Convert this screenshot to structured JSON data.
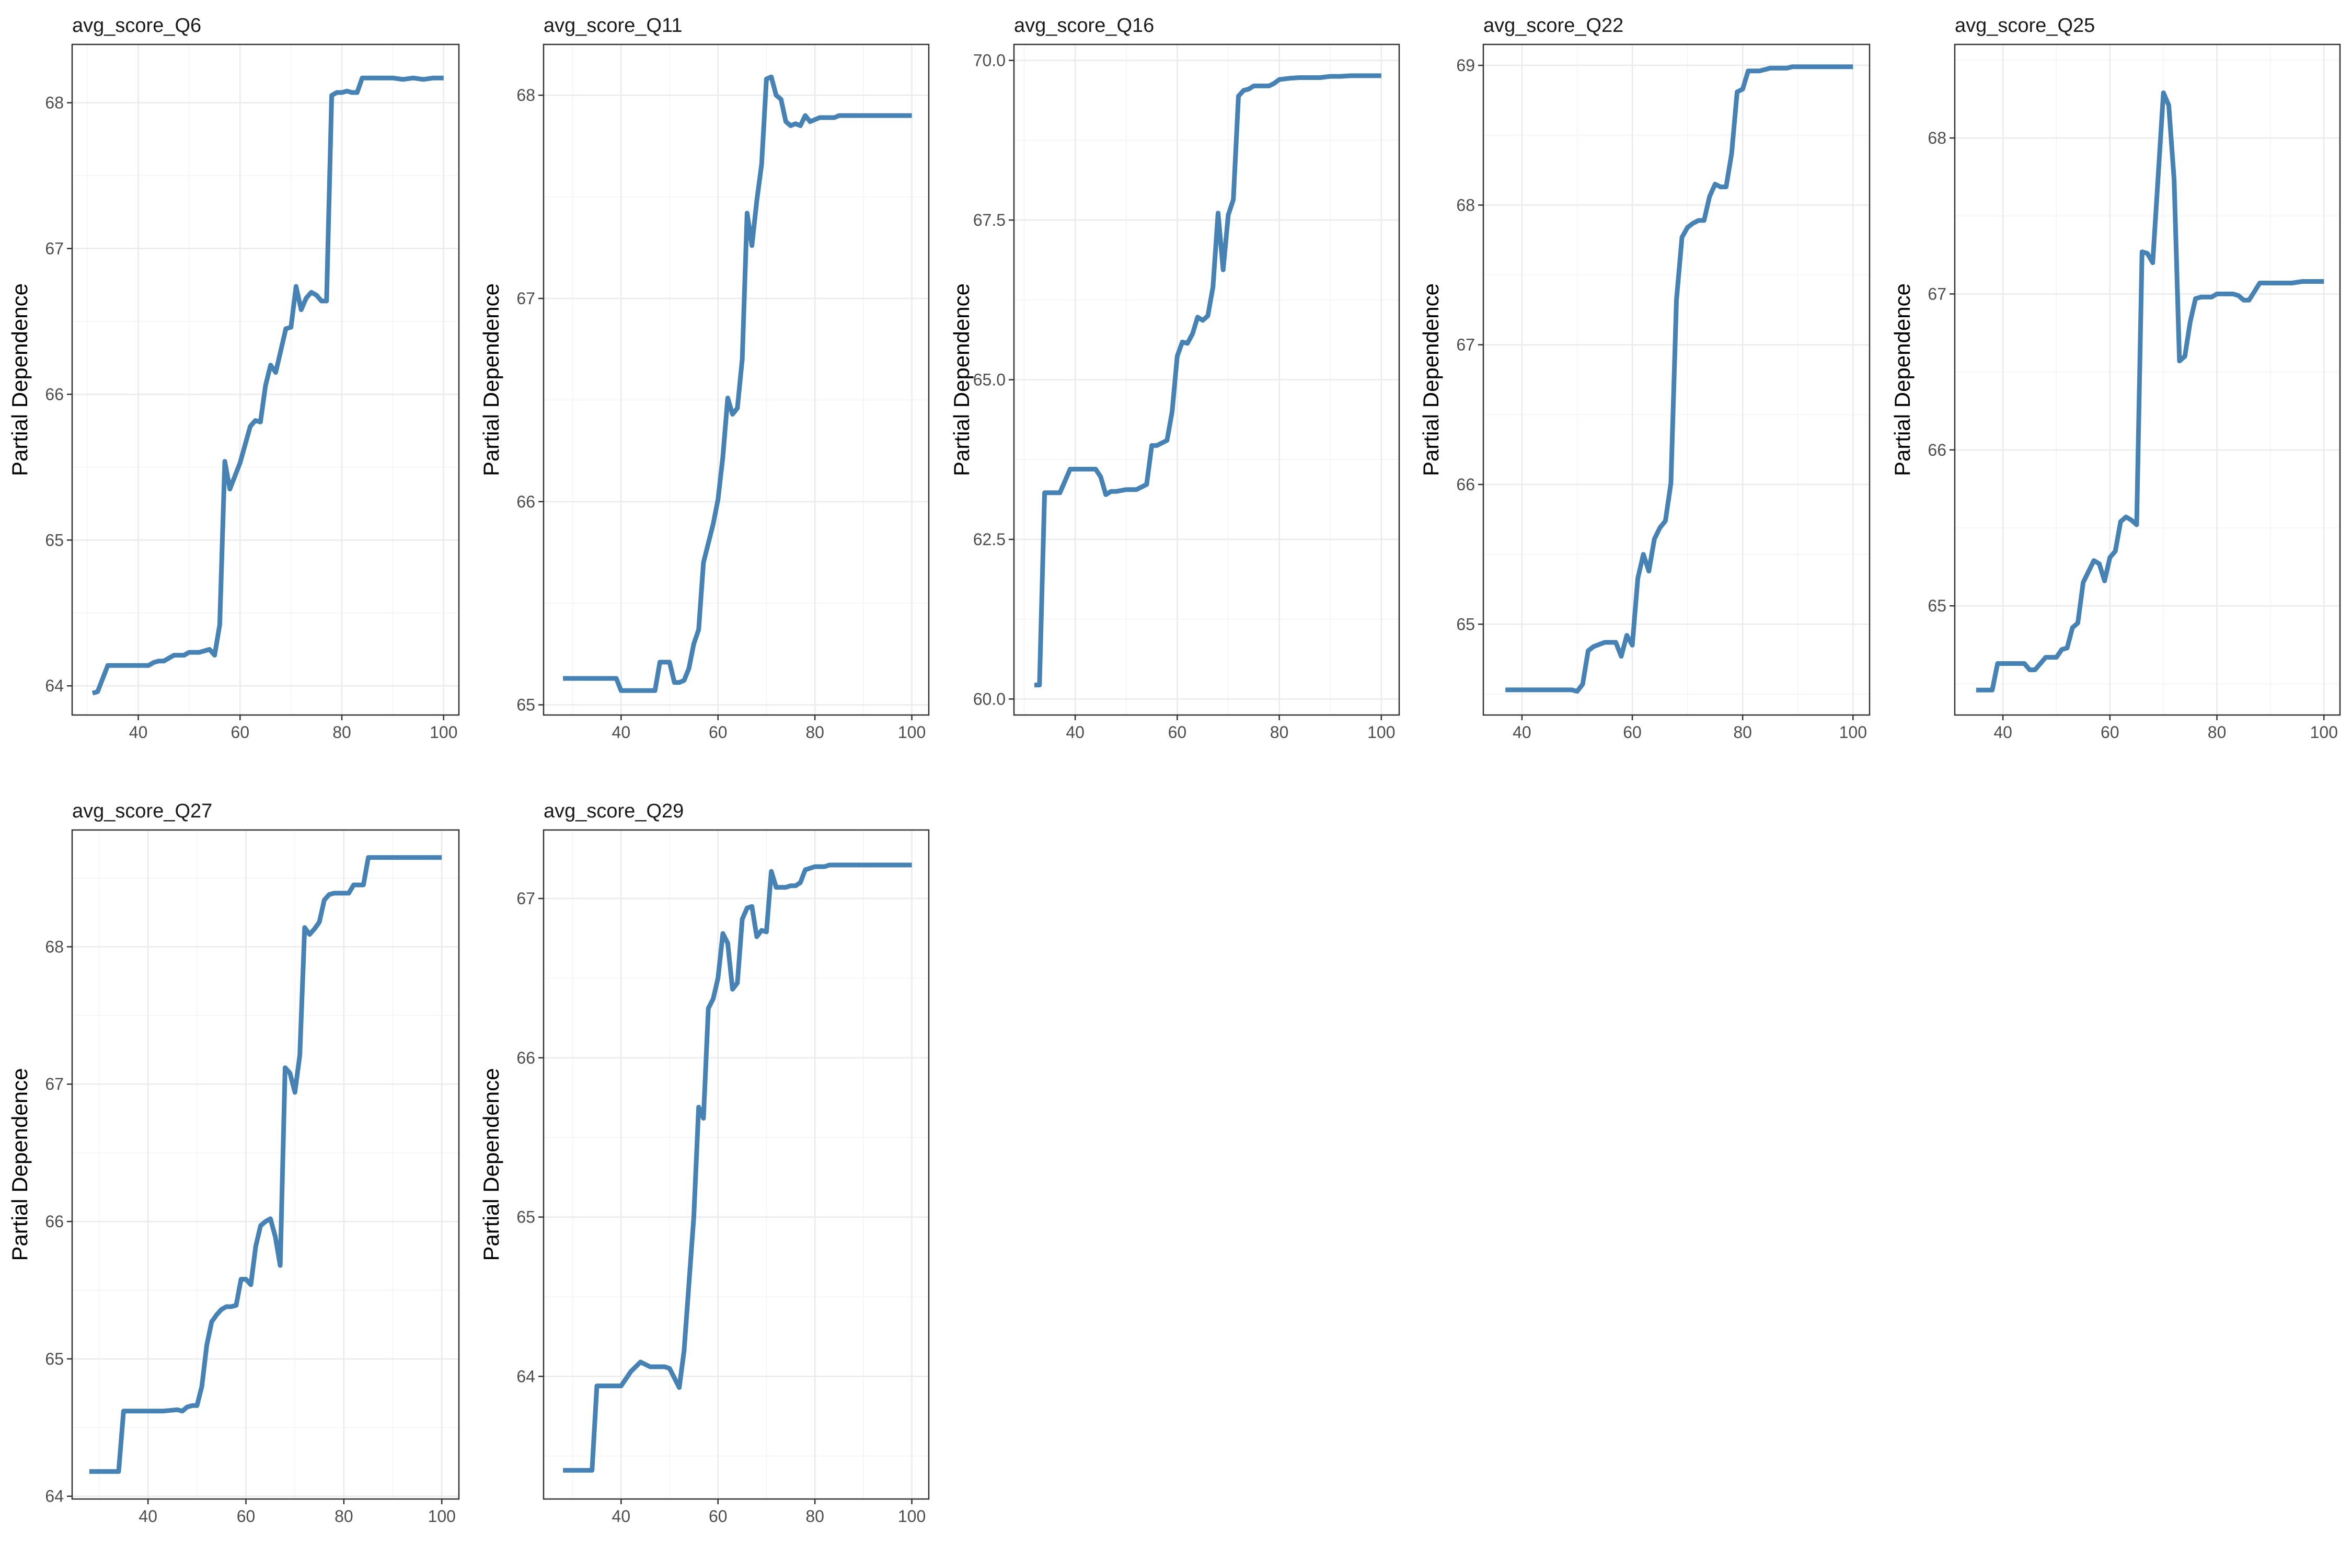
{
  "style": {
    "line_color": "#4682B4",
    "panel_border_color": "#333333",
    "grid_color": "#EBEBEB",
    "background": "#FFFFFF"
  },
  "chart_data": [
    {
      "type": "line",
      "title": "avg_score_Q6",
      "ylabel": "Partial Dependence",
      "xlabel": "",
      "xlim": [
        27,
        103
      ],
      "ylim": [
        63.8,
        68.4
      ],
      "xticks": [
        40,
        60,
        80,
        100
      ],
      "yticks": [
        64,
        65,
        66,
        67,
        68
      ],
      "grid": true,
      "x": [
        31,
        32,
        34,
        36,
        38,
        40,
        42,
        43,
        44,
        45,
        47,
        48,
        49,
        50,
        52,
        54,
        55,
        56,
        57,
        58,
        60,
        62,
        63,
        64,
        65,
        66,
        67,
        69,
        70,
        71,
        72,
        73,
        74,
        75,
        76,
        77,
        78,
        79,
        80,
        81,
        82,
        83,
        84,
        85,
        86,
        87,
        88,
        90,
        92,
        94,
        96,
        98,
        100
      ],
      "y": [
        63.95,
        63.96,
        64.14,
        64.14,
        64.14,
        64.14,
        64.14,
        64.16,
        64.17,
        64.17,
        64.21,
        64.21,
        64.21,
        64.23,
        64.23,
        64.25,
        64.21,
        64.42,
        65.54,
        65.35,
        65.53,
        65.78,
        65.82,
        65.81,
        66.06,
        66.2,
        66.15,
        66.45,
        66.46,
        66.74,
        66.58,
        66.66,
        66.7,
        66.68,
        66.64,
        66.64,
        68.05,
        68.07,
        68.07,
        68.08,
        68.07,
        68.07,
        68.17,
        68.17,
        68.17,
        68.17,
        68.17,
        68.17,
        68.16,
        68.17,
        68.16,
        68.17,
        68.17
      ]
    },
    {
      "type": "line",
      "title": "avg_score_Q11",
      "ylabel": "Partial Dependence",
      "xlabel": "",
      "xlim": [
        24,
        103.5
      ],
      "ylim": [
        64.95,
        68.25
      ],
      "xticks": [
        40,
        60,
        80,
        100
      ],
      "yticks": [
        65,
        66,
        67,
        68
      ],
      "grid": true,
      "x": [
        28,
        31,
        34,
        37,
        39,
        40,
        42,
        44,
        46,
        47,
        48,
        49,
        50,
        51,
        52,
        53,
        54,
        55,
        56,
        57,
        59,
        60,
        61,
        62,
        63,
        64,
        65,
        66,
        67,
        68,
        69,
        70,
        71,
        72,
        73,
        74,
        75,
        76,
        77,
        78,
        79,
        80,
        81,
        82,
        83,
        84,
        85,
        86,
        87,
        88,
        89,
        90,
        92,
        94,
        96,
        98,
        100
      ],
      "y": [
        65.13,
        65.13,
        65.13,
        65.13,
        65.13,
        65.07,
        65.07,
        65.07,
        65.07,
        65.07,
        65.21,
        65.21,
        65.21,
        65.11,
        65.11,
        65.12,
        65.18,
        65.3,
        65.37,
        65.7,
        65.89,
        66.01,
        66.22,
        66.51,
        66.43,
        66.46,
        66.7,
        67.42,
        67.26,
        67.48,
        67.66,
        68.08,
        68.09,
        68.0,
        67.98,
        67.87,
        67.85,
        67.86,
        67.85,
        67.9,
        67.87,
        67.88,
        67.89,
        67.89,
        67.89,
        67.89,
        67.9,
        67.9,
        67.9,
        67.9,
        67.9,
        67.9,
        67.9,
        67.9,
        67.9,
        67.9,
        67.9
      ],
      "x_note": "",
      "y_note": ""
    },
    {
      "type": "line",
      "title": "avg_score_Q16",
      "ylabel": "Partial Dependence",
      "xlabel": "",
      "xlim": [
        28,
        103.5
      ],
      "ylim": [
        59.75,
        70.25
      ],
      "xticks": [
        40,
        60,
        80,
        100
      ],
      "yticks": [
        60.0,
        62.5,
        65.0,
        67.5,
        70.0
      ],
      "ytick_labels": [
        "60.0",
        "62.5",
        "65.0",
        "67.5",
        "70.0"
      ],
      "grid": true,
      "x": [
        32,
        33,
        34,
        37,
        39,
        41,
        43,
        44,
        45,
        46,
        47,
        48,
        50,
        52,
        54,
        55,
        56,
        58,
        59,
        60,
        61,
        62,
        63,
        64,
        65,
        66,
        67,
        68,
        69,
        70,
        71,
        72,
        73,
        74,
        75,
        76,
        78,
        79,
        80,
        82,
        84,
        86,
        88,
        90,
        92,
        94,
        96,
        98,
        100
      ],
      "y": [
        60.22,
        60.22,
        63.23,
        63.23,
        63.6,
        63.6,
        63.6,
        63.6,
        63.48,
        63.2,
        63.25,
        63.25,
        63.28,
        63.28,
        63.36,
        63.97,
        63.97,
        64.05,
        64.5,
        65.37,
        65.59,
        65.57,
        65.72,
        65.98,
        65.93,
        66.0,
        66.45,
        67.61,
        66.72,
        67.58,
        67.82,
        69.44,
        69.53,
        69.55,
        69.6,
        69.6,
        69.6,
        69.64,
        69.7,
        69.72,
        69.73,
        69.73,
        69.73,
        69.75,
        69.75,
        69.76,
        69.76,
        69.76,
        69.76
      ]
    },
    {
      "type": "line",
      "title": "avg_score_Q22",
      "ylabel": "Partial Dependence",
      "xlabel": "",
      "xlim": [
        33,
        103
      ],
      "ylim": [
        64.35,
        69.15
      ],
      "xticks": [
        40,
        60,
        80,
        100
      ],
      "yticks": [
        65,
        66,
        67,
        68,
        69
      ],
      "grid": true,
      "x": [
        37,
        40,
        43,
        46,
        48,
        49,
        50,
        51,
        52,
        53,
        55,
        57,
        58,
        59,
        60,
        61,
        62,
        63,
        64,
        65,
        66,
        67,
        68,
        69,
        70,
        71,
        72,
        73,
        74,
        75,
        76,
        77,
        78,
        79,
        80,
        81,
        82,
        83,
        84,
        85,
        86,
        87,
        88,
        89,
        90,
        92,
        94,
        96,
        98,
        100
      ],
      "y": [
        64.53,
        64.53,
        64.53,
        64.53,
        64.53,
        64.53,
        64.52,
        64.57,
        64.81,
        64.84,
        64.87,
        64.87,
        64.77,
        64.92,
        64.85,
        65.33,
        65.5,
        65.38,
        65.61,
        65.69,
        65.74,
        66.01,
        67.32,
        67.77,
        67.84,
        67.87,
        67.89,
        67.89,
        68.06,
        68.15,
        68.13,
        68.13,
        68.37,
        68.81,
        68.83,
        68.96,
        68.96,
        68.96,
        68.97,
        68.98,
        68.98,
        68.98,
        68.98,
        68.99,
        68.99,
        68.99,
        68.99,
        68.99,
        68.99,
        68.99
      ]
    },
    {
      "type": "line",
      "title": "avg_score_Q25",
      "ylabel": "Partial Dependence",
      "xlabel": "",
      "xlim": [
        31,
        103
      ],
      "ylim": [
        64.3,
        68.6
      ],
      "xticks": [
        40,
        60,
        80,
        100
      ],
      "yticks": [
        65,
        66,
        67,
        68
      ],
      "grid": true,
      "x": [
        35,
        37,
        38,
        39,
        41,
        43,
        44,
        45,
        46,
        47,
        48,
        50,
        51,
        52,
        53,
        54,
        55,
        57,
        58,
        59,
        60,
        61,
        62,
        63,
        64,
        65,
        66,
        67,
        68,
        70,
        71,
        72,
        73,
        74,
        75,
        76,
        77,
        78,
        79,
        80,
        81,
        82,
        83,
        84,
        85,
        86,
        88,
        90,
        92,
        94,
        96,
        98,
        100
      ],
      "y": [
        64.46,
        64.46,
        64.46,
        64.63,
        64.63,
        64.63,
        64.63,
        64.59,
        64.59,
        64.63,
        64.67,
        64.67,
        64.72,
        64.73,
        64.86,
        64.89,
        65.15,
        65.29,
        65.27,
        65.16,
        65.31,
        65.35,
        65.54,
        65.57,
        65.55,
        65.52,
        67.27,
        67.26,
        67.2,
        68.29,
        68.21,
        67.73,
        66.57,
        66.6,
        66.82,
        66.97,
        66.98,
        66.98,
        66.98,
        67.0,
        67.0,
        67.0,
        67.0,
        66.99,
        66.96,
        66.96,
        67.07,
        67.07,
        67.07,
        67.07,
        67.08,
        67.08,
        67.08
      ]
    },
    {
      "type": "line",
      "title": "avg_score_Q27",
      "ylabel": "Partial Dependence",
      "xlabel": "",
      "xlim": [
        24.5,
        103.5
      ],
      "ylim": [
        63.98,
        68.85
      ],
      "xticks": [
        40,
        60,
        80,
        100
      ],
      "yticks": [
        64,
        65,
        66,
        67,
        68
      ],
      "grid": true,
      "x": [
        28,
        31,
        34,
        35,
        37,
        40,
        43,
        46,
        47,
        48,
        49,
        50,
        51,
        52,
        53,
        54,
        55,
        56,
        57,
        58,
        59,
        60,
        61,
        62,
        63,
        64,
        65,
        66,
        67,
        68,
        69,
        70,
        71,
        72,
        73,
        74,
        75,
        76,
        77,
        78,
        79,
        80,
        81,
        82,
        83,
        84,
        85,
        86,
        88,
        90,
        92,
        94,
        95,
        96,
        98,
        100
      ],
      "y": [
        64.18,
        64.18,
        64.18,
        64.62,
        64.62,
        64.62,
        64.62,
        64.63,
        64.62,
        64.65,
        64.66,
        64.66,
        64.8,
        65.1,
        65.27,
        65.32,
        65.36,
        65.38,
        65.38,
        65.39,
        65.58,
        65.58,
        65.54,
        65.82,
        65.97,
        66.0,
        66.02,
        65.89,
        65.68,
        67.12,
        67.08,
        66.94,
        67.21,
        68.14,
        68.09,
        68.13,
        68.18,
        68.34,
        68.38,
        68.39,
        68.39,
        68.39,
        68.39,
        68.45,
        68.45,
        68.45,
        68.65,
        68.65,
        68.65,
        68.65,
        68.65,
        68.65,
        68.65,
        68.65,
        68.65,
        68.65
      ]
    },
    {
      "type": "line",
      "title": "avg_score_Q29",
      "ylabel": "Partial Dependence",
      "xlabel": "",
      "xlim": [
        24,
        103.5
      ],
      "ylim": [
        63.23,
        67.43
      ],
      "xticks": [
        40,
        60,
        80,
        100
      ],
      "yticks": [
        64,
        65,
        66,
        67
      ],
      "grid": true,
      "x": [
        28,
        31,
        34,
        35,
        37,
        39,
        40,
        42,
        44,
        46,
        47,
        49,
        50,
        52,
        53,
        54,
        55,
        56,
        57,
        58,
        59,
        60,
        61,
        62,
        63,
        64,
        65,
        66,
        67,
        68,
        69,
        70,
        71,
        72,
        73,
        74,
        75,
        76,
        77,
        78,
        79,
        80,
        81,
        82,
        83,
        84,
        86,
        88,
        89,
        90,
        91,
        92,
        94,
        96,
        98,
        100
      ],
      "y": [
        63.41,
        63.41,
        63.41,
        63.94,
        63.94,
        63.94,
        63.94,
        64.03,
        64.09,
        64.06,
        64.06,
        64.06,
        64.05,
        63.93,
        64.16,
        64.58,
        65.0,
        65.69,
        65.62,
        66.31,
        66.37,
        66.5,
        66.78,
        66.72,
        66.43,
        66.47,
        66.87,
        66.94,
        66.95,
        66.76,
        66.8,
        66.79,
        67.17,
        67.07,
        67.07,
        67.07,
        67.08,
        67.08,
        67.1,
        67.18,
        67.19,
        67.2,
        67.2,
        67.2,
        67.21,
        67.21,
        67.21,
        67.21,
        67.21,
        67.21,
        67.21,
        67.21,
        67.21,
        67.21,
        67.21,
        67.21
      ]
    }
  ]
}
